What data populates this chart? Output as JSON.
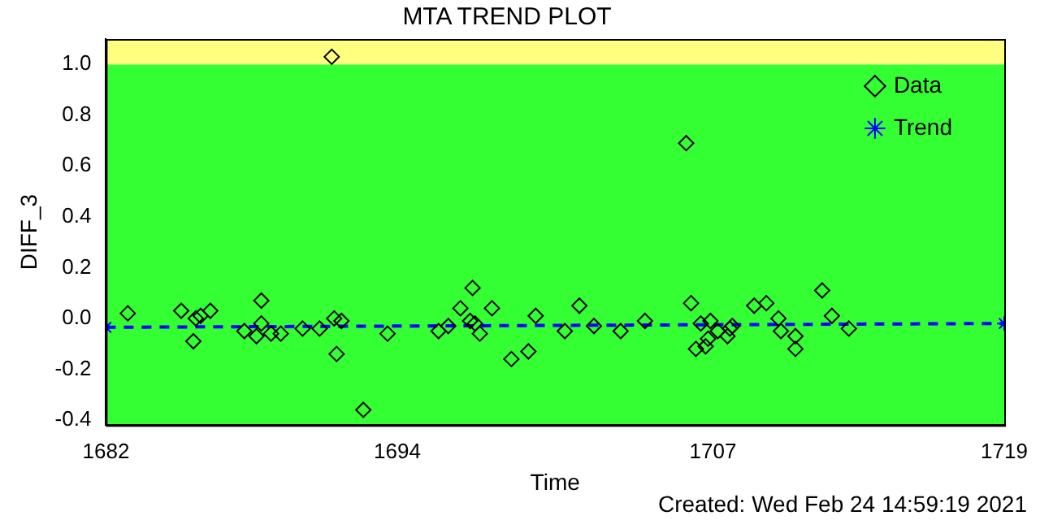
{
  "chart_data": {
    "type": "scatter",
    "title": "MTA TREND PLOT",
    "xlabel": "Time",
    "ylabel": "DIFF_3",
    "annotations": [
      "Created: Wed Feb 24 14:59:19 2021"
    ],
    "xlim": [
      1682,
      1719
    ],
    "xticks": [
      1682,
      1694,
      1707,
      1719
    ],
    "ylim": [
      -0.42,
      1.1
    ],
    "yticks": [
      -0.4,
      -0.2,
      {
        "value": 0,
        "label": "0.0"
      },
      0.2,
      0.4,
      0.6,
      0.8,
      {
        "value": 1,
        "label": "1.0"
      }
    ],
    "bands": [
      {
        "axis": "y",
        "from": -0.42,
        "to": 1.0,
        "color": "#33ff33"
      },
      {
        "axis": "y",
        "from": 1.0,
        "to": 1.1,
        "color": "#ffff80"
      }
    ],
    "grid": false,
    "legend": "top right",
    "series": [
      {
        "name": "Data",
        "color": "#000000",
        "marker": "diamond",
        "x": [
          1682.9,
          1685.1,
          1685.6,
          1685.7,
          1685.9,
          1686.3,
          1687.7,
          1688.2,
          1688.4,
          1688.4,
          1688.8,
          1689.2,
          1690.1,
          1690.8,
          1691.3,
          1691.4,
          1691.5,
          1691.7,
          1692.6,
          1693.6,
          1695.7,
          1696.1,
          1696.6,
          1697.0,
          1697.1,
          1697.2,
          1697.4,
          1697.9,
          1698.7,
          1699.4,
          1699.7,
          1700.9,
          1701.5,
          1702.1,
          1703.2,
          1704.2,
          1705.9,
          1706.1,
          1706.3,
          1706.5,
          1706.7,
          1706.8,
          1706.9,
          1707.2,
          1707.6,
          1707.7,
          1707.8,
          1708.7,
          1709.2,
          1709.7,
          1709.8,
          1710.4,
          1710.4,
          1711.5,
          1711.9,
          1712.6
        ],
        "values": [
          0.02,
          0.03,
          -0.09,
          0.0,
          0.01,
          0.03,
          -0.05,
          -0.07,
          0.07,
          -0.02,
          -0.06,
          -0.06,
          -0.04,
          -0.04,
          1.03,
          0.0,
          -0.14,
          -0.01,
          -0.36,
          -0.06,
          -0.05,
          -0.03,
          0.04,
          -0.01,
          0.12,
          -0.02,
          -0.06,
          0.04,
          -0.16,
          -0.13,
          0.01,
          -0.05,
          0.05,
          -0.03,
          -0.05,
          -0.01,
          0.69,
          0.06,
          -0.12,
          -0.02,
          -0.11,
          -0.08,
          -0.01,
          -0.05,
          -0.07,
          -0.04,
          -0.03,
          0.05,
          0.06,
          0.0,
          -0.05,
          -0.07,
          -0.12,
          0.11,
          0.01,
          -0.04
        ]
      },
      {
        "name": "Trend",
        "type": "line",
        "color": "#0000ff",
        "marker": "cross",
        "line_style": "dashed",
        "x": [
          1682,
          1719
        ],
        "values": [
          -0.035,
          -0.02
        ]
      }
    ]
  }
}
